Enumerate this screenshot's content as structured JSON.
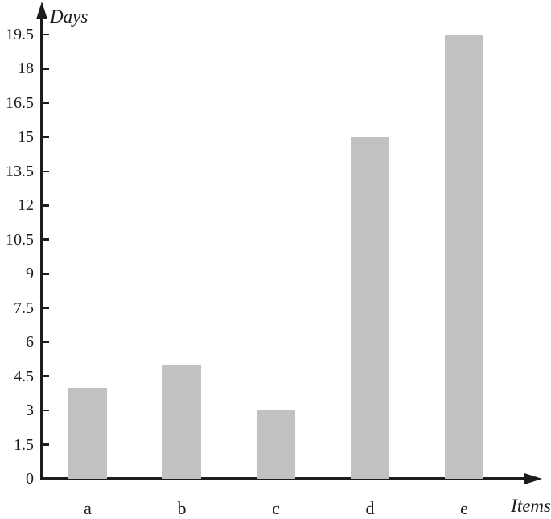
{
  "chart_data": {
    "type": "bar",
    "title": "",
    "xlabel": "Items",
    "ylabel": "Days",
    "categories": [
      "a",
      "b",
      "c",
      "d",
      "e"
    ],
    "values": [
      4,
      5,
      3,
      15,
      19.5
    ],
    "yticks": [
      0,
      1.5,
      3,
      4.5,
      6,
      7.5,
      9,
      10.5,
      12,
      13.5,
      15,
      16.5,
      18,
      19.5
    ],
    "ytick_labels": [
      "0",
      "1.5",
      "3",
      "4.5",
      "6",
      "7.5",
      "9",
      "10.5",
      "12",
      "13.5",
      "15",
      "16.5",
      "18",
      "19.5"
    ],
    "ylim": [
      0,
      19.5
    ],
    "grid": false,
    "legend_position": "none",
    "bar_color": "#c1c1c1",
    "axis_color": "#1c1c1c"
  }
}
